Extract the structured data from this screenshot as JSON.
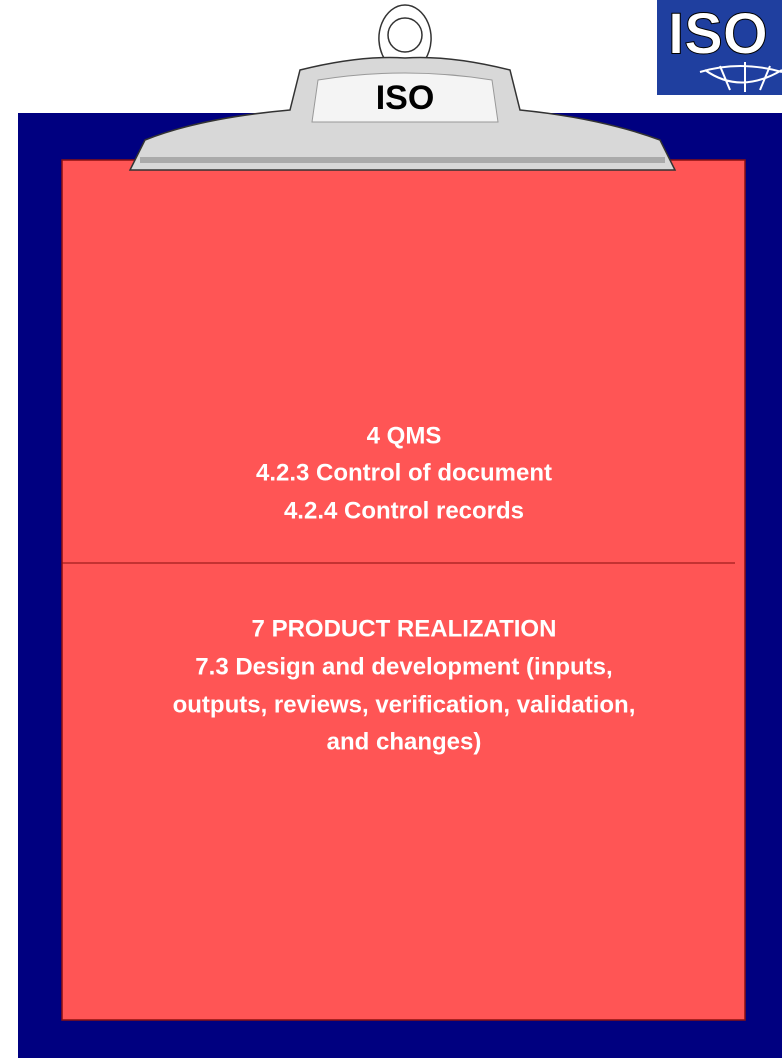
{
  "logo": {
    "text": "ISO"
  },
  "clip": {
    "label": "ISO"
  },
  "sections": [
    {
      "lines": [
        "4 QMS",
        "4.2.3 Control of document",
        "4.2.4 Control records"
      ]
    },
    {
      "lines": [
        "7 PRODUCT REALIZATION",
        "7.3 Design and development (inputs,",
        "outputs, reviews, verification, validation,",
        "and changes)"
      ]
    }
  ]
}
